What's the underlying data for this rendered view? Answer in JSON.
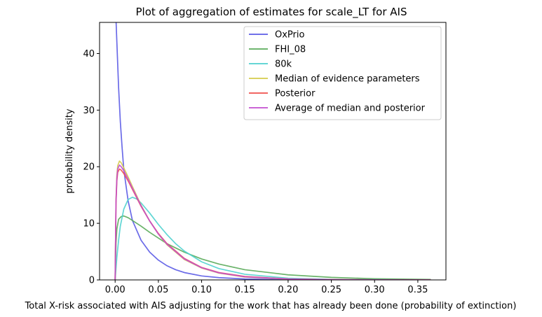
{
  "chart_data": {
    "type": "line",
    "title": "Plot of aggregation of estimates for scale_LT for AIS",
    "xlabel": "Total X-risk associated with AIS adjusting for the work that has already been done (probability of extinction)",
    "ylabel": "probability density",
    "xlim": [
      -0.018,
      0.3825
    ],
    "ylim": [
      0,
      45.5
    ],
    "xticks": [
      {
        "value": 0.0,
        "label": "0.00"
      },
      {
        "value": 0.05,
        "label": "0.05"
      },
      {
        "value": 0.1,
        "label": "0.10"
      },
      {
        "value": 0.15,
        "label": "0.15"
      },
      {
        "value": 0.2,
        "label": "0.20"
      },
      {
        "value": 0.25,
        "label": "0.25"
      },
      {
        "value": 0.3,
        "label": "0.30"
      },
      {
        "value": 0.35,
        "label": "0.35"
      }
    ],
    "yticks": [
      {
        "value": 0,
        "label": "0"
      },
      {
        "value": 10,
        "label": "10"
      },
      {
        "value": 20,
        "label": "20"
      },
      {
        "value": 30,
        "label": "30"
      },
      {
        "value": 40,
        "label": "40"
      }
    ],
    "grid": false,
    "legend_position": "top-right",
    "series": [
      {
        "name": "OxPrio",
        "color": "#5b5be6",
        "x": [
          0.001,
          0.002,
          0.004,
          0.006,
          0.008,
          0.01,
          0.015,
          0.02,
          0.03,
          0.04,
          0.05,
          0.06,
          0.07,
          0.08,
          0.1,
          0.12,
          0.15,
          0.2,
          0.25,
          0.3,
          0.365
        ],
        "y": [
          46,
          42,
          34,
          28,
          23.5,
          19.5,
          14,
          10.5,
          7,
          4.9,
          3.5,
          2.5,
          1.8,
          1.3,
          0.7,
          0.4,
          0.17,
          0.04,
          0.01,
          0.003,
          0.001
        ]
      },
      {
        "name": "FHI_08",
        "color": "#5aab5a",
        "x": [
          0.0,
          0.001,
          0.002,
          0.004,
          0.007,
          0.01,
          0.015,
          0.02,
          0.03,
          0.04,
          0.05,
          0.06,
          0.08,
          0.1,
          0.12,
          0.15,
          0.2,
          0.25,
          0.3,
          0.365
        ],
        "y": [
          0,
          6.5,
          9.0,
          10.7,
          11.2,
          11.3,
          11.0,
          10.5,
          9.5,
          8.4,
          7.4,
          6.4,
          4.9,
          3.7,
          2.8,
          1.8,
          0.9,
          0.45,
          0.2,
          0.08
        ]
      },
      {
        "name": "80k",
        "color": "#4fd1cf",
        "x": [
          0.0,
          0.002,
          0.004,
          0.006,
          0.01,
          0.015,
          0.02,
          0.025,
          0.03,
          0.04,
          0.05,
          0.06,
          0.07,
          0.08,
          0.1,
          0.12,
          0.15,
          0.2,
          0.25,
          0.3,
          0.365
        ],
        "y": [
          0,
          4.0,
          7.0,
          9.5,
          12.5,
          14.2,
          14.6,
          14.3,
          13.6,
          11.8,
          9.8,
          8.0,
          6.4,
          5.1,
          3.2,
          2.0,
          1.0,
          0.3,
          0.1,
          0.03,
          0.01
        ]
      },
      {
        "name": "Median of evidence parameters",
        "color": "#d6cc4c",
        "x": [
          0.0,
          0.001,
          0.002,
          0.003,
          0.005,
          0.007,
          0.01,
          0.015,
          0.02,
          0.03,
          0.04,
          0.05,
          0.06,
          0.08,
          0.1,
          0.12,
          0.15,
          0.2,
          0.25,
          0.3,
          0.365
        ],
        "y": [
          0,
          14,
          18.5,
          20.2,
          21.0,
          20.7,
          19.8,
          18.2,
          16.5,
          13.2,
          10.4,
          8.1,
          6.2,
          3.6,
          2.1,
          1.2,
          0.5,
          0.15,
          0.05,
          0.02,
          0.01
        ]
      },
      {
        "name": "Posterior",
        "color": "#f0504c",
        "x": [
          0.0,
          0.001,
          0.002,
          0.003,
          0.005,
          0.007,
          0.01,
          0.015,
          0.02,
          0.03,
          0.04,
          0.05,
          0.06,
          0.08,
          0.1,
          0.12,
          0.15,
          0.2,
          0.25,
          0.3,
          0.365
        ],
        "y": [
          0,
          13.5,
          17.5,
          19.0,
          19.6,
          19.4,
          18.8,
          17.5,
          16.0,
          13.0,
          10.4,
          8.2,
          6.4,
          3.8,
          2.2,
          1.3,
          0.6,
          0.17,
          0.05,
          0.02,
          0.01
        ]
      },
      {
        "name": "Average of median and posterior",
        "color": "#c24fd1",
        "x": [
          0.0,
          0.001,
          0.002,
          0.003,
          0.005,
          0.007,
          0.01,
          0.015,
          0.02,
          0.03,
          0.04,
          0.05,
          0.06,
          0.08,
          0.1,
          0.12,
          0.15,
          0.2,
          0.25,
          0.3,
          0.365
        ],
        "y": [
          0,
          13.8,
          18.0,
          19.6,
          20.3,
          20.0,
          19.3,
          17.8,
          16.2,
          13.1,
          10.4,
          8.1,
          6.3,
          3.7,
          2.15,
          1.25,
          0.55,
          0.16,
          0.05,
          0.02,
          0.01
        ]
      }
    ]
  }
}
